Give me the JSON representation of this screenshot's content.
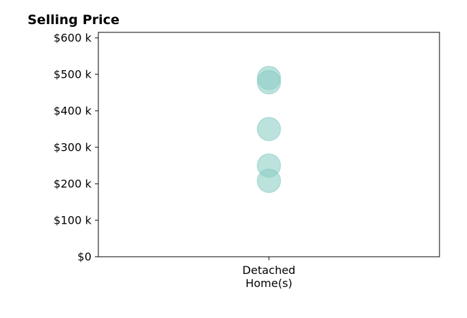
{
  "chart_data": {
    "type": "scatter",
    "title": "Selling Price",
    "xlabel": "",
    "ylabel": "",
    "categories": [
      [
        "Detached",
        "Home(s)"
      ]
    ],
    "ylim": [
      0,
      615000
    ],
    "yticks": [
      0,
      100000,
      200000,
      300000,
      400000,
      500000,
      600000
    ],
    "ytick_labels": [
      "$0",
      "$100 k",
      "$200 k",
      "$300 k",
      "$400 k",
      "$500 k",
      "$600 k"
    ],
    "series": [
      {
        "category_index": 0,
        "values": [
          490000,
          478000,
          350000,
          250000,
          208000
        ]
      }
    ],
    "grid": false,
    "legend": "none",
    "point_color": "#8ecfc6",
    "point_edge_color": "#6dbfb4",
    "point_opacity": 0.6
  }
}
